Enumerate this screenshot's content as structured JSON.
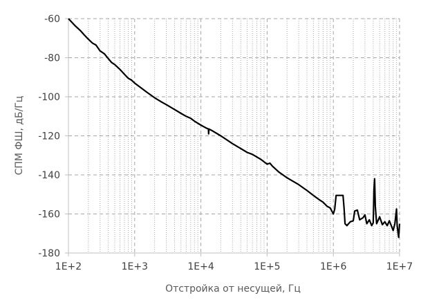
{
  "chart_data": {
    "type": "line",
    "title": "",
    "xlabel": "Отстройка от несущей, Гц",
    "ylabel": "СПМ ФШ, дБ/Гц",
    "xscale": "log",
    "xlim": [
      100,
      10000000
    ],
    "ylim": [
      -180,
      -60
    ],
    "xticks": [
      "1E+2",
      "1E+3",
      "1E+4",
      "1E+5",
      "1E+6",
      "1E+7"
    ],
    "yticks": [
      "-60",
      "-80",
      "-100",
      "-120",
      "-140",
      "-160",
      "-180"
    ],
    "grid": "major dashed, minor dotted (log x)",
    "legend": "none",
    "colors": {
      "line": "#000000",
      "grid": "#a6a6a6",
      "axis": "#bfbfbf",
      "text": "#404040"
    },
    "series": [
      {
        "points": [
          [
            100,
            -60
          ],
          [
            125,
            -63.5
          ],
          [
            150,
            -66
          ],
          [
            175,
            -68.5
          ],
          [
            200,
            -70.5
          ],
          [
            230,
            -72.5
          ],
          [
            260,
            -73.5
          ],
          [
            300,
            -76.5
          ],
          [
            350,
            -78
          ],
          [
            400,
            -80.5
          ],
          [
            450,
            -82.5
          ],
          [
            500,
            -83.5
          ],
          [
            600,
            -86
          ],
          [
            700,
            -88.5
          ],
          [
            800,
            -90.5
          ],
          [
            900,
            -91.5
          ],
          [
            1000,
            -93
          ],
          [
            1200,
            -95
          ],
          [
            1500,
            -97.5
          ],
          [
            2000,
            -100.5
          ],
          [
            2500,
            -102.5
          ],
          [
            3000,
            -104
          ],
          [
            4000,
            -106.5
          ],
          [
            5000,
            -108.5
          ],
          [
            6000,
            -110
          ],
          [
            7000,
            -111
          ],
          [
            8000,
            -112.5
          ],
          [
            10000,
            -114.5
          ],
          [
            12000,
            -116
          ],
          [
            13000,
            -116.5
          ],
          [
            13100,
            -119
          ],
          [
            13200,
            -116.5
          ],
          [
            15000,
            -117.5
          ],
          [
            20000,
            -120
          ],
          [
            30000,
            -124
          ],
          [
            40000,
            -126.5
          ],
          [
            50000,
            -128.5
          ],
          [
            60000,
            -129.5
          ],
          [
            80000,
            -132
          ],
          [
            100000,
            -134.5
          ],
          [
            110000,
            -134
          ],
          [
            120000,
            -135.5
          ],
          [
            150000,
            -138.5
          ],
          [
            200000,
            -141.5
          ],
          [
            300000,
            -145
          ],
          [
            400000,
            -148
          ],
          [
            500000,
            -150.5
          ],
          [
            600000,
            -152.5
          ],
          [
            700000,
            -154
          ],
          [
            800000,
            -156
          ],
          [
            900000,
            -157
          ],
          [
            1000000,
            -160
          ],
          [
            1050000,
            -157.5
          ],
          [
            1100000,
            -150.5
          ],
          [
            1400000,
            -150.5
          ],
          [
            1450000,
            -157
          ],
          [
            1500000,
            -165
          ],
          [
            1600000,
            -166
          ],
          [
            1800000,
            -164
          ],
          [
            2000000,
            -163.5
          ],
          [
            2100000,
            -158.5
          ],
          [
            2300000,
            -158
          ],
          [
            2500000,
            -163
          ],
          [
            2800000,
            -162
          ],
          [
            3000000,
            -160.5
          ],
          [
            3200000,
            -165
          ],
          [
            3500000,
            -163
          ],
          [
            3800000,
            -166
          ],
          [
            4000000,
            -164.5
          ],
          [
            4100000,
            -148
          ],
          [
            4200000,
            -142
          ],
          [
            4300000,
            -156
          ],
          [
            4500000,
            -165
          ],
          [
            5000000,
            -161.5
          ],
          [
            5500000,
            -165.5
          ],
          [
            6000000,
            -164
          ],
          [
            6500000,
            -166
          ],
          [
            7000000,
            -163.5
          ],
          [
            7500000,
            -166
          ],
          [
            8000000,
            -168.5
          ],
          [
            8500000,
            -165
          ],
          [
            9000000,
            -157.5
          ],
          [
            9200000,
            -166
          ],
          [
            9500000,
            -170
          ],
          [
            9700000,
            -172
          ],
          [
            10000000,
            -165
          ]
        ]
      }
    ]
  }
}
